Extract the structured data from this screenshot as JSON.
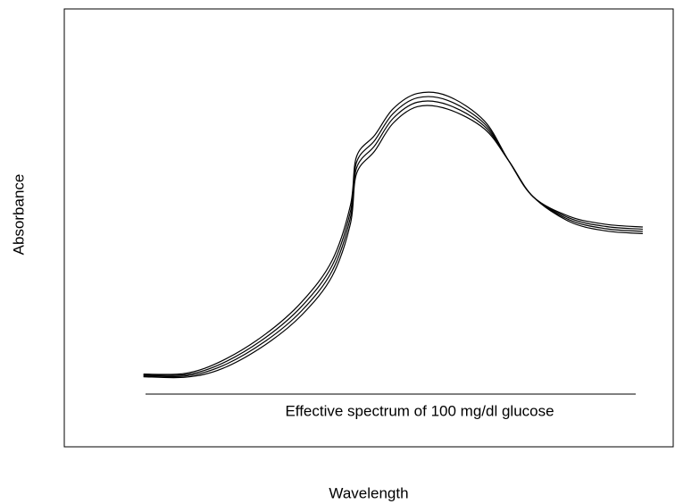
{
  "chart_data": {
    "type": "line",
    "xlabel": "Wavelength",
    "ylabel": "Absorbance",
    "annotation": "Effective spectrum of 100 mg/dl glucose",
    "xlim": [
      0,
      100
    ],
    "ylim": [
      0,
      100
    ],
    "grid": false,
    "x": [
      13,
      20,
      26,
      33,
      39,
      44,
      47,
      48,
      51,
      54,
      58,
      63,
      69,
      73,
      77,
      83,
      89,
      95
    ],
    "series": [
      {
        "color": "#000000",
        "values": [
          16.6,
          16.8,
          19.7,
          25.7,
          33.1,
          42.6,
          55.2,
          66.3,
          71.2,
          77.2,
          80.7,
          80.1,
          74.4,
          65.3,
          57.1,
          52.6,
          50.8,
          50.2
        ]
      },
      {
        "color": "#000000",
        "values": [
          16.4,
          16.5,
          19.1,
          24.9,
          32.1,
          41.4,
          53.8,
          65.0,
          70.0,
          76.1,
          79.7,
          79.1,
          73.8,
          65.3,
          57.1,
          52.2,
          50.3,
          49.7
        ]
      },
      {
        "color": "#000000",
        "values": [
          16.2,
          16.2,
          18.5,
          24.1,
          31.1,
          40.2,
          52.4,
          63.7,
          68.8,
          75.0,
          78.7,
          78.1,
          73.2,
          65.3,
          57.1,
          51.8,
          49.8,
          49.2
        ]
      },
      {
        "color": "#000000",
        "values": [
          16.0,
          15.9,
          17.9,
          23.3,
          30.1,
          39.0,
          51.0,
          62.4,
          67.6,
          73.9,
          77.7,
          77.1,
          72.6,
          65.3,
          57.1,
          51.4,
          49.3,
          48.7
        ]
      }
    ]
  }
}
